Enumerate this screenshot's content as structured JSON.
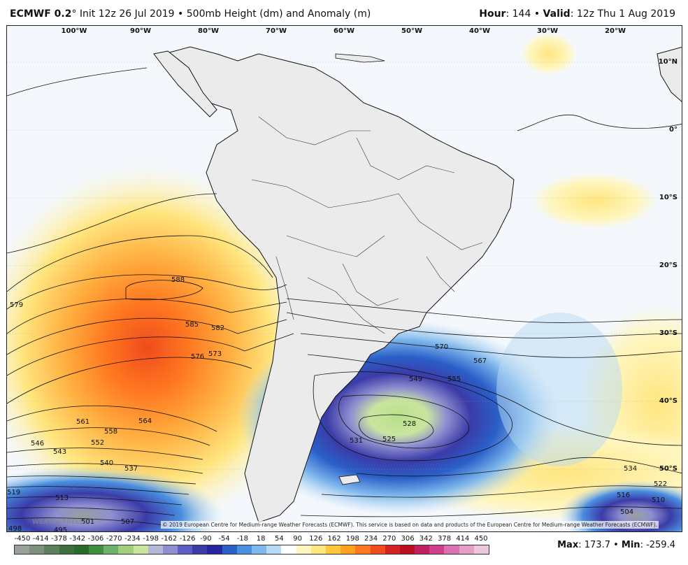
{
  "header": {
    "model": "ECMWF 0.2",
    "init": "Init 12z 26 Jul 2019",
    "field": "500mb Height (dm) and Anomaly (m)",
    "hour_label": "Hour",
    "hour": "144",
    "valid_label": "Valid",
    "valid": "12z Thu 1 Aug 2019"
  },
  "map": {
    "lon_labels": [
      "100°W",
      "90°W",
      "80°W",
      "70°W",
      "60°W",
      "50°W",
      "40°W",
      "30°W",
      "20°W"
    ],
    "lat_labels": [
      "10°N",
      "0°",
      "10°S",
      "20°S",
      "30°S",
      "40°S",
      "50°S"
    ],
    "contour_labels": [
      "588",
      "585",
      "582",
      "579",
      "576",
      "573",
      "570",
      "567",
      "564",
      "561",
      "558",
      "555",
      "552",
      "549",
      "546",
      "543",
      "540",
      "537",
      "534",
      "531",
      "528",
      "525",
      "522",
      "519",
      "516",
      "513",
      "510",
      "507",
      "504",
      "501",
      "498",
      "495"
    ],
    "copyright": "© 2019 European Centre for Medium-range Weather Forecasts (ECMWF). This service is based on data and products of the European Centre for Medium-range Weather Forecasts (ECMWF).",
    "logo": "WEATHERBELL"
  },
  "colorbar": {
    "labels": [
      "-450",
      "-414",
      "-378",
      "-342",
      "-306",
      "-270",
      "-234",
      "-198",
      "-162",
      "-126",
      "-90",
      "-54",
      "-18",
      "18",
      "54",
      "90",
      "126",
      "162",
      "198",
      "234",
      "270",
      "306",
      "342",
      "378",
      "414",
      "450"
    ],
    "colors": [
      "#9aa09a",
      "#7d907d",
      "#5e7f5e",
      "#3f6e3f",
      "#2a6a2a",
      "#3e8f3e",
      "#6cb06c",
      "#9fcf7f",
      "#c9e59f",
      "#b7b8d7",
      "#8f8fd0",
      "#5d5dc4",
      "#3b3ba8",
      "#2626a0",
      "#2a5fc8",
      "#4a8fe0",
      "#7fb8ec",
      "#b8d9f4",
      "#ffffff",
      "#fff6bf",
      "#ffe680",
      "#ffc83c",
      "#ffa01e",
      "#ff7820",
      "#f04b1c",
      "#d42020",
      "#b8101e",
      "#c02060",
      "#d0408a",
      "#dc70b0",
      "#e4a0c8",
      "#ecc8dc"
    ],
    "max_label": "Max",
    "max_value": "173.7",
    "min_label": "Min",
    "min_value": "-259.4"
  }
}
